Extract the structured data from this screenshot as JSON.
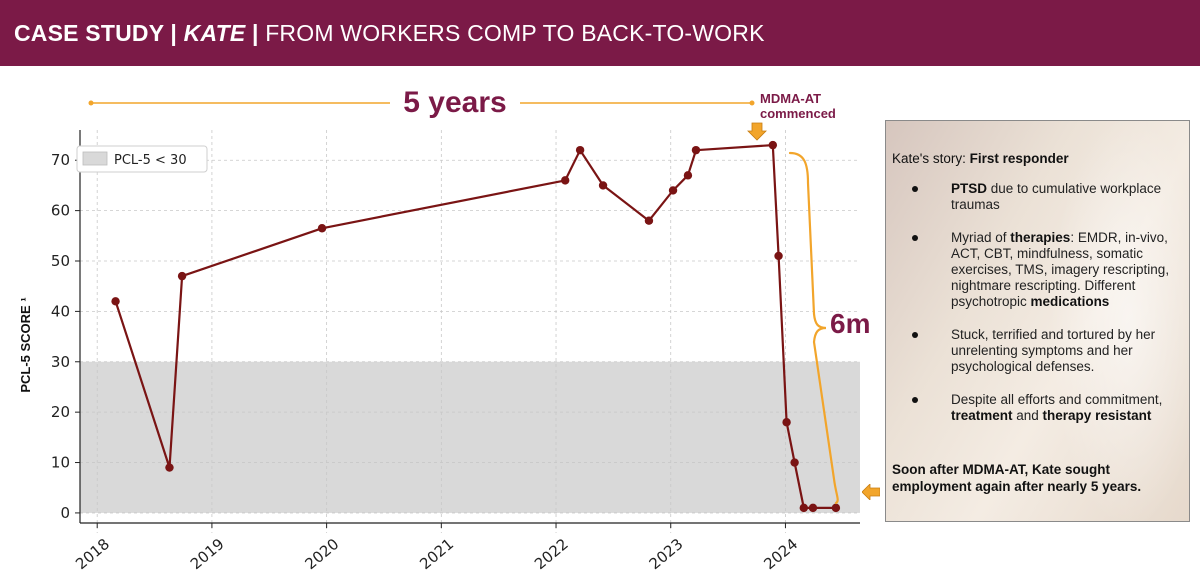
{
  "header": {
    "part1": "CASE STUDY | ",
    "part2": "KATE",
    "part3": " | ",
    "part4": "FROM WORKERS COMP TO BACK-TO-WORK"
  },
  "timeline": {
    "duration_label": "5 years",
    "event_label": "MDMA-AT commenced",
    "bracket_label": "6m"
  },
  "story": {
    "heading_prefix": "Kate's story:",
    "heading_bold": "First responder",
    "items": [
      {
        "b1": "PTSD",
        "t1": " due to cumulative workplace traumas"
      },
      {
        "t1": "Myriad of ",
        "b1": "therapies",
        "t2": ": EMDR, in-vivo, ACT, CBT, mindfulness, somatic exercises, TMS, imagery rescripting, nightmare rescripting.  Different psychotropic ",
        "b2": "medications"
      },
      {
        "t1": "Stuck, terrified and tortured by her unrelenting symptoms and her psychological defenses."
      },
      {
        "t1": "Despite all efforts and commitment, ",
        "b1": "treatment",
        "t2": " and ",
        "b2": "therapy resistant"
      }
    ],
    "footer": "Soon after MDMA-AT, Kate sought employment again after nearly 5 years."
  },
  "colors": {
    "brand": "#7b1a47",
    "line": "#7a1414",
    "band": "#d9d9d9",
    "accent": "#f2a52b"
  },
  "chart_data": {
    "type": "line",
    "title": "",
    "xlabel": "",
    "ylabel": "PCL-5 SCORE ¹",
    "xlim": [
      2017.85,
      2024.65
    ],
    "ylim": [
      -2,
      76
    ],
    "x_ticks": [
      "2018",
      "2019",
      "2020",
      "2021",
      "2022",
      "2023",
      "2024"
    ],
    "y_ticks": [
      "0",
      "10",
      "20",
      "30",
      "40",
      "50",
      "60",
      "70"
    ],
    "grid": true,
    "legend": {
      "position": "top-left",
      "entries": [
        "PCL-5 < 30"
      ]
    },
    "threshold_band": {
      "label": "PCL-5 < 30",
      "from": 0,
      "to": 30
    },
    "series": [
      {
        "x": [
          2018.16,
          2018.63,
          2018.74,
          2019.96,
          2022.08,
          2022.21,
          2022.41,
          2022.81,
          2023.02,
          2023.15,
          2023.22,
          2023.89,
          2023.94,
          2024.01,
          2024.08,
          2024.16,
          2024.24,
          2024.44
        ],
        "values": [
          42,
          9,
          47,
          56.5,
          66,
          72,
          65,
          58,
          64,
          67,
          72,
          73,
          51,
          18,
          10,
          1,
          1,
          1
        ]
      }
    ]
  }
}
